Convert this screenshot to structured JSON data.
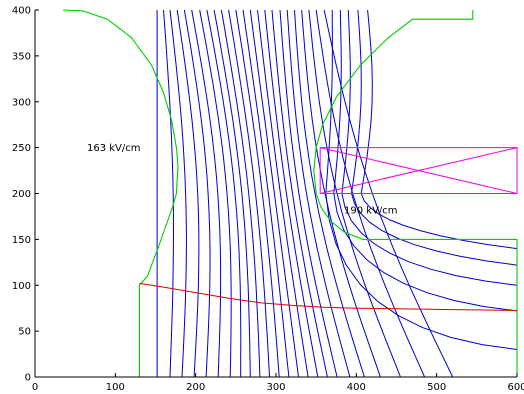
{
  "chart_data": {
    "type": "line",
    "title": "",
    "xlabel": "",
    "ylabel": "",
    "xlim": [
      0,
      600
    ],
    "ylim": [
      0,
      400
    ],
    "x_ticks": [
      0,
      100,
      200,
      300,
      400,
      500,
      600
    ],
    "y_ticks": [
      0,
      50,
      100,
      150,
      200,
      250,
      300,
      350,
      400
    ],
    "x_tick_labels": [
      "0",
      "100",
      "200",
      "300",
      "400",
      "500",
      "600"
    ],
    "y_tick_labels": [
      "0",
      "50",
      "100",
      "150",
      "200",
      "250",
      "300",
      "350",
      "400"
    ],
    "grid": false,
    "colors": {
      "boundary": "#00cc00",
      "field_lines": "#0000cc",
      "trajectory": "#dd0000",
      "box": "#ee00ee",
      "axes": "#000000"
    },
    "annotations": [
      {
        "text": "163 kV/cm",
        "x": 98,
        "y": 250
      },
      {
        "text": "190 kV/cm",
        "x": 418,
        "y": 182
      }
    ],
    "boundary": [
      {
        "name": "left-electrode",
        "x": [
          35,
          60,
          90,
          120,
          145,
          160,
          170,
          176,
          178,
          176,
          171,
          165,
          155,
          140,
          130,
          130
        ],
        "y": [
          400,
          399,
          390,
          370,
          340,
          310,
          280,
          250,
          230,
          200,
          185,
          170,
          145,
          110,
          100,
          0
        ]
      },
      {
        "name": "right-electrode",
        "x": [
          545,
          545,
          470,
          440,
          405,
          375,
          358,
          350,
          347,
          350,
          356,
          368,
          385,
          408,
          600,
          600
        ],
        "y": [
          400,
          390,
          390,
          370,
          340,
          305,
          275,
          250,
          225,
          200,
          185,
          170,
          158,
          150,
          150,
          0
        ]
      }
    ],
    "box": {
      "x": [
        355,
        600
      ],
      "y": [
        200,
        250
      ]
    },
    "trajectory": {
      "x": [
        130,
        160,
        200,
        240,
        280,
        320,
        360,
        400,
        440,
        480,
        520,
        560,
        600
      ],
      "y": [
        102,
        98,
        92,
        86,
        81,
        78,
        76,
        75,
        74.5,
        74,
        73.5,
        73,
        72.5
      ]
    },
    "field_lines": [
      {
        "top_x": 152,
        "bottom_x": 152,
        "bow": 0
      },
      {
        "top_x": 160,
        "bottom_x": 168,
        "bow": 8
      },
      {
        "top_x": 168,
        "bottom_x": 183,
        "bow": 12
      },
      {
        "top_x": 177,
        "bottom_x": 198,
        "bow": 15
      },
      {
        "top_x": 186,
        "bottom_x": 213,
        "bow": 16
      },
      {
        "top_x": 195,
        "bottom_x": 228,
        "bow": 16
      },
      {
        "top_x": 205,
        "bottom_x": 243,
        "bow": 15
      },
      {
        "top_x": 214,
        "bottom_x": 256,
        "bow": 14
      },
      {
        "top_x": 223,
        "bottom_x": 268,
        "bow": 12
      },
      {
        "top_x": 232,
        "bottom_x": 280,
        "bow": 10
      },
      {
        "top_x": 241,
        "bottom_x": 292,
        "bow": 8
      },
      {
        "top_x": 250,
        "bottom_x": 304,
        "bow": 6
      },
      {
        "top_x": 259,
        "bottom_x": 316,
        "bow": 3
      },
      {
        "top_x": 268,
        "bottom_x": 328,
        "bow": 0
      },
      {
        "top_x": 277,
        "bottom_x": 340,
        "bow": -3
      },
      {
        "top_x": 286,
        "bottom_x": 352,
        "bow": -6
      },
      {
        "top_x": 295,
        "bottom_x": 364,
        "bow": -9
      },
      {
        "top_x": 305,
        "bottom_x": 376,
        "bow": -12
      },
      {
        "top_x": 314,
        "bottom_x": 392,
        "bow": -15
      },
      {
        "top_x": 323,
        "bottom_x": 410,
        "bow": -18
      },
      {
        "top_x": 332,
        "bottom_x": 430,
        "bow": -20
      },
      {
        "top_x": 341,
        "bottom_x": 455,
        "bow": -22
      },
      {
        "top_x": 350,
        "bottom_x": 485,
        "bow": -22
      },
      {
        "top_x": 360,
        "bottom_x": 520,
        "bow": -20
      },
      {
        "top_x": 370,
        "end_x": 600,
        "end_y": 30
      },
      {
        "top_x": 380,
        "end_x": 600,
        "end_y": 72
      },
      {
        "top_x": 390,
        "end_x": 600,
        "end_y": 100
      },
      {
        "top_x": 402,
        "end_x": 600,
        "end_y": 122
      },
      {
        "top_x": 414,
        "end_x": 600,
        "end_y": 140
      }
    ]
  }
}
